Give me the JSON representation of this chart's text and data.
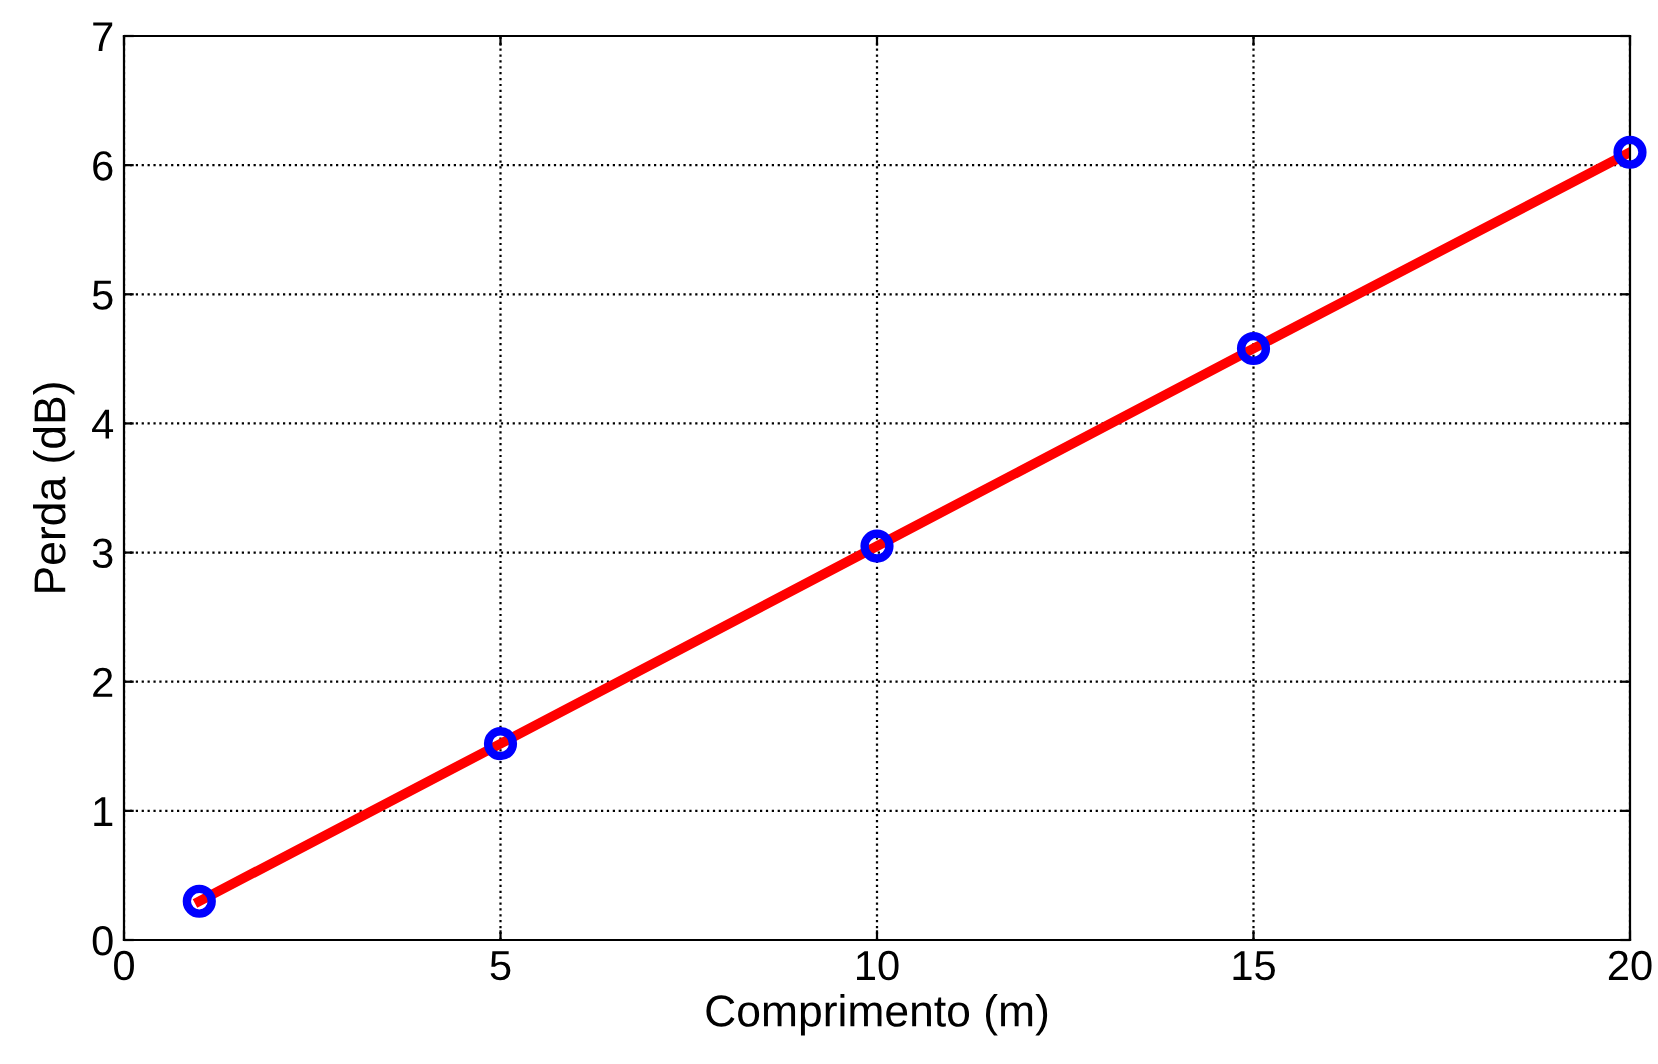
{
  "chart_data": {
    "type": "line",
    "xlabel": "Comprimento (m)",
    "ylabel": "Perda (dB)",
    "xlim": [
      0,
      20
    ],
    "xticks": [
      0,
      5,
      10,
      15,
      20
    ],
    "ylim": [
      0,
      7
    ],
    "yticks": [
      0,
      1,
      2,
      3,
      4,
      5,
      6,
      7
    ],
    "grid": true,
    "series": [
      {
        "color": "#ff0000",
        "x": [
          1,
          5,
          10,
          15,
          20
        ],
        "values": [
          0.3,
          1.52,
          3.05,
          4.58,
          6.1
        ],
        "marker": "none",
        "line_style": "solid"
      },
      {
        "type": "scatter",
        "color": "#0000ff",
        "x": [
          1,
          5,
          10,
          15,
          20
        ],
        "values": [
          0.3,
          1.52,
          3.05,
          4.58,
          6.1
        ],
        "marker": "circle"
      }
    ]
  }
}
